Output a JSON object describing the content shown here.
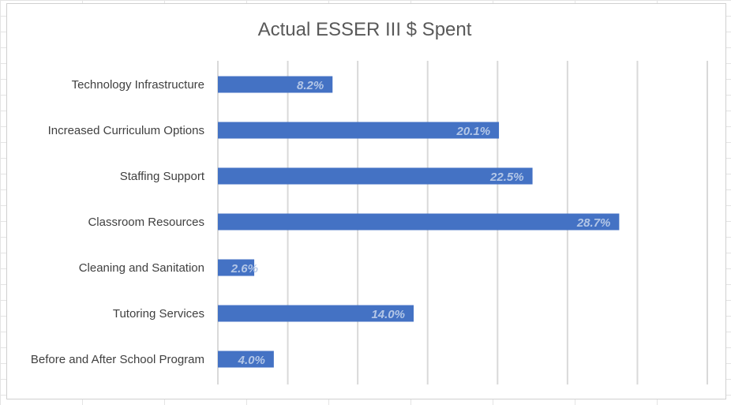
{
  "chart_data": {
    "type": "bar",
    "orientation": "horizontal",
    "title": "Actual ESSER III $ Spent",
    "xlabel": "",
    "ylabel": "",
    "categories": [
      "Technology Infrastructure",
      "Increased Curriculum Options",
      "Staffing Support",
      "Classroom Resources",
      "Cleaning and Sanitation",
      "Tutoring Services",
      "Before and After School Program"
    ],
    "values": [
      8.2,
      20.1,
      22.5,
      28.7,
      2.6,
      14.0,
      4.0
    ],
    "data_labels": [
      "8.2%",
      "20.1%",
      "22.5%",
      "28.7%",
      "2.6%",
      "14.0%",
      "4.0%"
    ],
    "xlim": [
      0,
      35
    ],
    "x_gridline_step": 5,
    "x_tick_labels_shown": false,
    "grid": true,
    "legend": "none",
    "colors": {
      "bar": "#4472c4",
      "data_label": "#b4c7e7",
      "gridline": "#d9d9d9",
      "title": "#595959"
    }
  }
}
